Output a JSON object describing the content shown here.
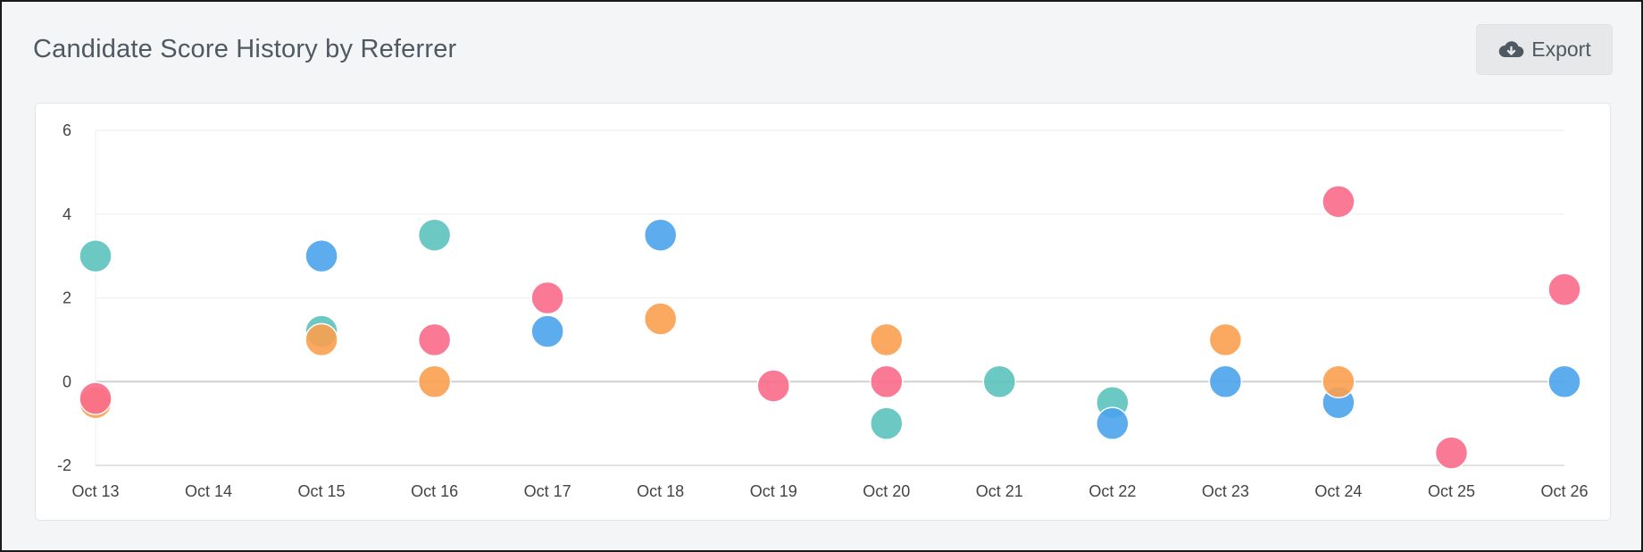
{
  "header": {
    "title": "Candidate Score History by Referrer",
    "export_label": "Export",
    "export_icon": "cloud-download-icon"
  },
  "chart_data": {
    "type": "scatter",
    "title": "Candidate Score History by Referrer",
    "xlabel": "",
    "ylabel": "",
    "ylim": [
      -2,
      6
    ],
    "yticks": [
      -2,
      0,
      2,
      4,
      6
    ],
    "categories": [
      "Oct 13",
      "Oct 14",
      "Oct 15",
      "Oct 16",
      "Oct 17",
      "Oct 18",
      "Oct 19",
      "Oct 20",
      "Oct 21",
      "Oct 22",
      "Oct 23",
      "Oct 24",
      "Oct 25",
      "Oct 26"
    ],
    "grid": true,
    "legend": "none",
    "series": [
      {
        "color": "#5cc2bd",
        "points": [
          {
            "x": "Oct 13",
            "y": 3.0
          },
          {
            "x": "Oct 15",
            "y": 1.2
          },
          {
            "x": "Oct 16",
            "y": 3.5
          },
          {
            "x": "Oct 20",
            "y": -1.0
          },
          {
            "x": "Oct 21",
            "y": 0.0
          },
          {
            "x": "Oct 22",
            "y": -0.5
          }
        ]
      },
      {
        "color": "#4aa3ec",
        "points": [
          {
            "x": "Oct 15",
            "y": 3.0
          },
          {
            "x": "Oct 17",
            "y": 1.2
          },
          {
            "x": "Oct 18",
            "y": 3.5
          },
          {
            "x": "Oct 22",
            "y": -1.0
          },
          {
            "x": "Oct 23",
            "y": 0.0
          },
          {
            "x": "Oct 24",
            "y": -0.5
          },
          {
            "x": "Oct 26",
            "y": 0.0
          }
        ]
      },
      {
        "color": "#fba04f",
        "points": [
          {
            "x": "Oct 13",
            "y": -0.5
          },
          {
            "x": "Oct 15",
            "y": 1.0
          },
          {
            "x": "Oct 16",
            "y": 0.0
          },
          {
            "x": "Oct 18",
            "y": 1.5
          },
          {
            "x": "Oct 20",
            "y": 1.0
          },
          {
            "x": "Oct 23",
            "y": 1.0
          },
          {
            "x": "Oct 24",
            "y": 0.0
          }
        ]
      },
      {
        "color": "#f96b8a",
        "points": [
          {
            "x": "Oct 13",
            "y": -0.4
          },
          {
            "x": "Oct 16",
            "y": 1.0
          },
          {
            "x": "Oct 17",
            "y": 2.0
          },
          {
            "x": "Oct 19",
            "y": -0.1
          },
          {
            "x": "Oct 20",
            "y": 0.0
          },
          {
            "x": "Oct 24",
            "y": 4.3
          },
          {
            "x": "Oct 25",
            "y": -1.7
          },
          {
            "x": "Oct 26",
            "y": 2.2
          }
        ]
      }
    ]
  }
}
